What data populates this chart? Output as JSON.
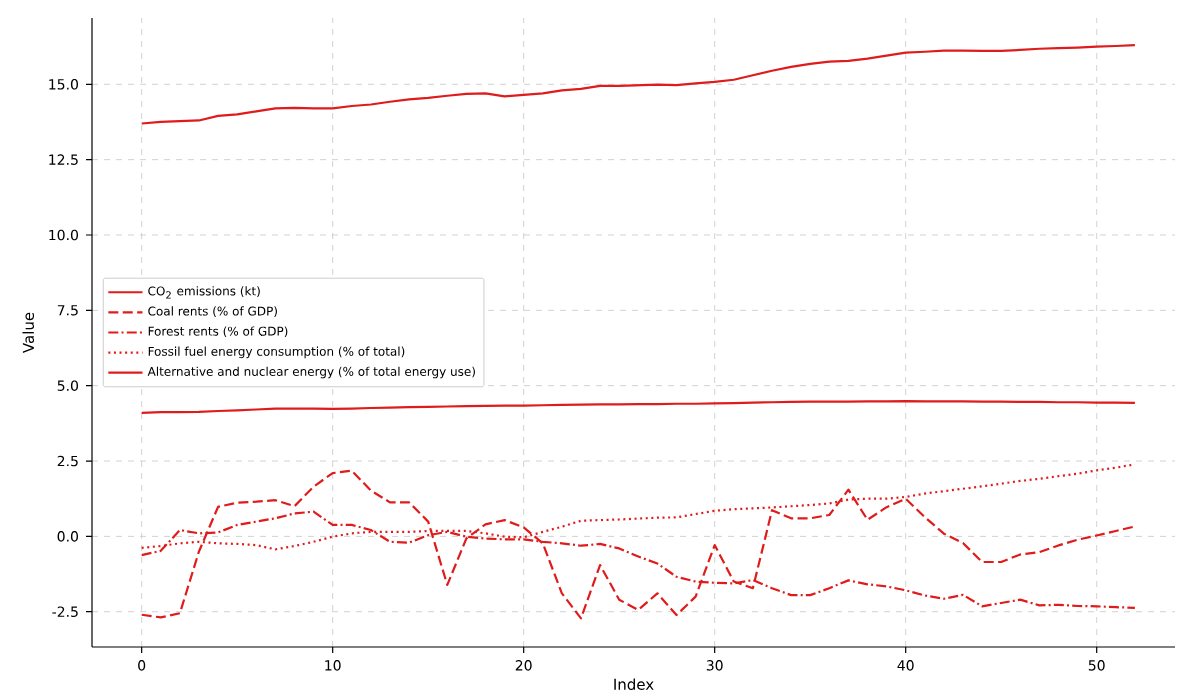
{
  "chart_data": {
    "type": "line",
    "xlabel": "Index",
    "ylabel": "Value",
    "x": [
      0,
      1,
      2,
      3,
      4,
      5,
      6,
      7,
      8,
      9,
      10,
      11,
      12,
      13,
      14,
      15,
      16,
      17,
      18,
      19,
      20,
      21,
      22,
      23,
      24,
      25,
      26,
      27,
      28,
      29,
      30,
      31,
      32,
      33,
      34,
      35,
      36,
      37,
      38,
      39,
      40,
      41,
      42,
      43,
      44,
      45,
      46,
      47,
      48,
      49,
      50,
      51,
      52
    ],
    "series": [
      {
        "name": "CO$_{2}$ emissions (kt)",
        "color": "#e01b1b",
        "line_style": "solid",
        "values": [
          13.7,
          13.75,
          13.78,
          13.8,
          13.95,
          14.0,
          14.1,
          14.2,
          14.22,
          14.2,
          14.2,
          14.28,
          14.33,
          14.42,
          14.5,
          14.55,
          14.62,
          14.68,
          14.7,
          14.6,
          14.65,
          14.7,
          14.8,
          14.85,
          14.95,
          14.95,
          14.97,
          14.99,
          14.97,
          15.03,
          15.08,
          15.15,
          15.3,
          15.45,
          15.58,
          15.68,
          15.75,
          15.78,
          15.85,
          15.95,
          16.05,
          16.08,
          16.12,
          16.12,
          16.11,
          16.11,
          16.14,
          16.18,
          16.2,
          16.22,
          16.25,
          16.27,
          16.3
        ]
      },
      {
        "name": "Coal rents (% of GDP)",
        "color": "#e01b1b",
        "line_style": "dashed",
        "values": [
          -2.6,
          -2.69,
          -2.55,
          -0.5,
          0.98,
          1.12,
          1.15,
          1.2,
          1.0,
          1.65,
          2.1,
          2.18,
          1.52,
          1.13,
          1.13,
          0.49,
          -1.61,
          -0.07,
          0.4,
          0.54,
          0.3,
          -0.23,
          -1.89,
          -2.72,
          -0.95,
          -2.1,
          -2.44,
          -1.89,
          -2.61,
          -2.0,
          -0.29,
          -1.5,
          -1.72,
          0.87,
          0.6,
          0.6,
          0.71,
          1.55,
          0.55,
          0.97,
          1.25,
          0.64,
          0.09,
          -0.22,
          -0.85,
          -0.85,
          -0.6,
          -0.52,
          -0.3,
          -0.11,
          0.03,
          0.18,
          0.33
        ]
      },
      {
        "name": "Forest rents (% of GDP)",
        "color": "#e01b1b",
        "line_style": "dashdot",
        "values": [
          -0.62,
          -0.48,
          0.21,
          0.1,
          0.13,
          0.38,
          0.49,
          0.6,
          0.76,
          0.82,
          0.38,
          0.38,
          0.21,
          -0.18,
          -0.21,
          0.04,
          0.15,
          -0.01,
          -0.07,
          -0.1,
          -0.1,
          -0.18,
          -0.23,
          -0.31,
          -0.25,
          -0.4,
          -0.67,
          -0.9,
          -1.34,
          -1.5,
          -1.54,
          -1.56,
          -1.45,
          -1.72,
          -1.95,
          -1.95,
          -1.72,
          -1.46,
          -1.59,
          -1.66,
          -1.79,
          -1.96,
          -2.07,
          -1.94,
          -2.32,
          -2.21,
          -2.1,
          -2.29,
          -2.27,
          -2.31,
          -2.32,
          -2.35,
          -2.37
        ]
      },
      {
        "name": "Fossil fuel energy consumption (% of total)",
        "color": "#e01b1b",
        "line_style": "dotted",
        "values": [
          -0.38,
          -0.32,
          -0.23,
          -0.18,
          -0.23,
          -0.25,
          -0.29,
          -0.43,
          -0.32,
          -0.18,
          -0.01,
          0.1,
          0.15,
          0.15,
          0.15,
          0.18,
          0.18,
          0.18,
          0.1,
          -0.01,
          -0.03,
          0.15,
          0.32,
          0.52,
          0.54,
          0.56,
          0.59,
          0.62,
          0.63,
          0.74,
          0.85,
          0.9,
          0.93,
          0.96,
          1.0,
          1.04,
          1.09,
          1.22,
          1.25,
          1.25,
          1.31,
          1.42,
          1.5,
          1.58,
          1.66,
          1.75,
          1.84,
          1.91,
          2.0,
          2.08,
          2.19,
          2.28,
          2.39
        ]
      },
      {
        "name": "Alternative and nuclear energy (% of total energy use)",
        "color": "#e01b1b",
        "line_style": "solid",
        "values": [
          4.1,
          4.12,
          4.12,
          4.13,
          4.16,
          4.18,
          4.21,
          4.24,
          4.24,
          4.24,
          4.23,
          4.24,
          4.26,
          4.27,
          4.29,
          4.3,
          4.31,
          4.32,
          4.33,
          4.34,
          4.34,
          4.35,
          4.36,
          4.37,
          4.38,
          4.38,
          4.39,
          4.39,
          4.4,
          4.4,
          4.41,
          4.42,
          4.44,
          4.45,
          4.46,
          4.47,
          4.47,
          4.47,
          4.48,
          4.48,
          4.49,
          4.48,
          4.48,
          4.48,
          4.47,
          4.47,
          4.46,
          4.46,
          4.45,
          4.45,
          4.44,
          4.44,
          4.43
        ]
      }
    ],
    "xlim": [
      -2.6,
      54.1
    ],
    "ylim": [
      -3.67,
      17.2
    ],
    "xticks": [
      0,
      10,
      20,
      30,
      40,
      50
    ],
    "yticks": [
      {
        "value": -2.5,
        "label": "-2.5"
      },
      {
        "value": 0,
        "label": "0.0"
      },
      {
        "value": 2.5,
        "label": "2.5"
      },
      {
        "value": 5,
        "label": "5.0"
      },
      {
        "value": 7.5,
        "label": "7.5"
      },
      {
        "value": 10,
        "label": "10.0"
      },
      {
        "value": 12.5,
        "label": "12.5"
      },
      {
        "value": 15,
        "label": "15.0"
      }
    ],
    "grid": true,
    "legend": "left",
    "marker": "none"
  }
}
